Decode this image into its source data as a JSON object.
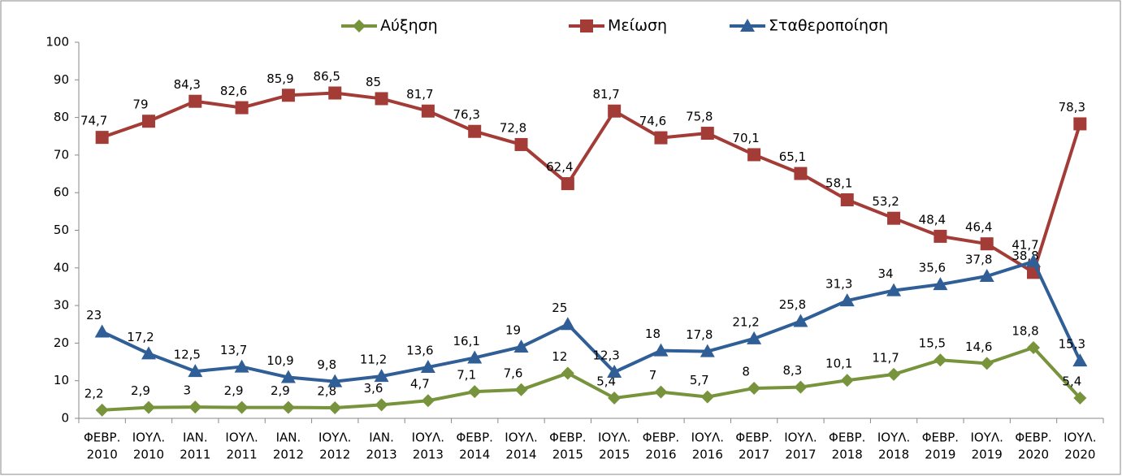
{
  "chart_data": {
    "type": "line",
    "categories": [
      [
        "ΦΕΒΡ.",
        "2010"
      ],
      [
        "ΙΟΥΛ.",
        "2010"
      ],
      [
        "ΙΑΝ.",
        "2011"
      ],
      [
        "ΙΟΥΛ.",
        "2011"
      ],
      [
        "ΙΑΝ.",
        "2012"
      ],
      [
        "ΙΟΥΛ.",
        "2012"
      ],
      [
        "ΙΑΝ.",
        "2013"
      ],
      [
        "ΙΟΥΛ.",
        "2013"
      ],
      [
        "ΦΕΒΡ.",
        "2014"
      ],
      [
        "ΙΟΥΛ.",
        "2014"
      ],
      [
        "ΦΕΒΡ.",
        "2015"
      ],
      [
        "ΙΟΥΛ.",
        "2015"
      ],
      [
        "ΦΕΒΡ.",
        "2016"
      ],
      [
        "ΙΟΥΛ.",
        "2016"
      ],
      [
        "ΦΕΒΡ.",
        "2017"
      ],
      [
        "ΙΟΥΛ.",
        "2017"
      ],
      [
        "ΦΕΒΡ.",
        "2018"
      ],
      [
        "ΙΟΥΛ.",
        "2018"
      ],
      [
        "ΦΕΒΡ.",
        "2019"
      ],
      [
        "ΙΟΥΛ.",
        "2019"
      ],
      [
        "ΦΕΒΡ.",
        "2020"
      ],
      [
        "ΙΟΥΛ.",
        "2020"
      ]
    ],
    "series": [
      {
        "name": "Αύξηση",
        "color": "#77933c",
        "marker": "diamond",
        "values": [
          2.2,
          2.9,
          3,
          2.9,
          2.9,
          2.8,
          3.6,
          4.7,
          7.1,
          7.6,
          12,
          5.4,
          7,
          5.7,
          8,
          8.3,
          10.1,
          11.7,
          15.5,
          14.6,
          18.8,
          5.4
        ],
        "value_labels": [
          "2,2",
          "2,9",
          "3",
          "2,9",
          "2,9",
          "2,8",
          "3,6",
          "4,7",
          "7,1",
          "7,6",
          "12",
          "5,4",
          "7",
          "5,7",
          "8",
          "8,3",
          "10,1",
          "11,7",
          "15,5",
          "14,6",
          "18,8",
          "5,4"
        ]
      },
      {
        "name": "Μείωση",
        "color": "#a33b36",
        "marker": "square",
        "values": [
          74.7,
          79,
          84.3,
          82.6,
          85.9,
          86.5,
          85,
          81.7,
          76.3,
          72.8,
          62.4,
          81.7,
          74.6,
          75.8,
          70.1,
          65.1,
          58.1,
          53.2,
          48.4,
          46.4,
          38.8,
          78.3
        ],
        "value_labels": [
          "74,7",
          "79",
          "84,3",
          "82,6",
          "85,9",
          "86,5",
          "85",
          "81,7",
          "76,3",
          "72,8",
          "62,4",
          "81,7",
          "74,6",
          "75,8",
          "70,1",
          "65,1",
          "58,1",
          "53,2",
          "48,4",
          "46,4",
          "38,8",
          "78,3"
        ]
      },
      {
        "name": "Σταθεροποίηση",
        "color": "#2f5f96",
        "marker": "triangle",
        "values": [
          23,
          17.2,
          12.5,
          13.7,
          10.9,
          9.8,
          11.2,
          13.6,
          16.1,
          19,
          25,
          12.3,
          18,
          17.8,
          21.2,
          25.8,
          31.3,
          34,
          35.6,
          37.8,
          41.7,
          15.3
        ],
        "value_labels": [
          "23",
          "17,2",
          "12,5",
          "13,7",
          "10,9",
          "9,8",
          "11,2",
          "13,6",
          "16,1",
          "19",
          "25",
          "12,3",
          "18",
          "17,8",
          "21,2",
          "25,8",
          "31,3",
          "34",
          "35,6",
          "37,8",
          "41,7",
          "15,3"
        ]
      }
    ],
    "ylim": [
      0,
      100
    ],
    "yticks": [
      0,
      10,
      20,
      30,
      40,
      50,
      60,
      70,
      80,
      90,
      100
    ],
    "legend": "top"
  }
}
